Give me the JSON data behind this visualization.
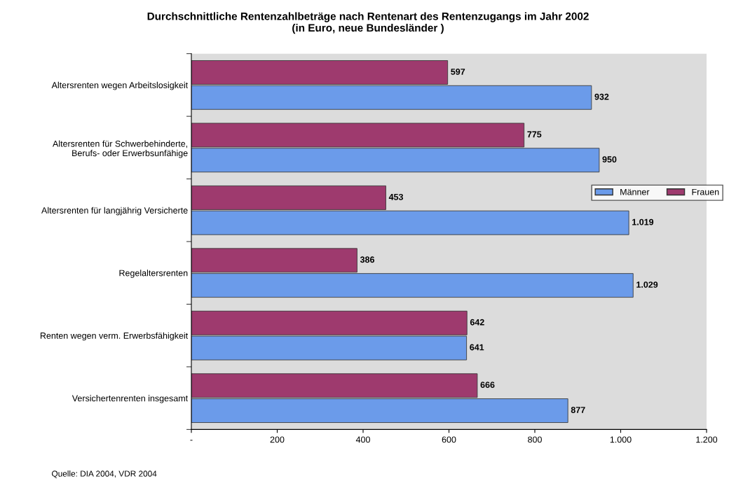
{
  "chart_data": {
    "type": "bar",
    "orientation": "horizontal",
    "title": "Durchschnittliche Rentenzahlbeträge nach Rentenart des Rentenzugangs im Jahr 2002\n(in Euro, neue Bundesländer )",
    "categories": [
      "Altersrenten wegen Arbeitslosigkeit",
      "Altersrenten für Schwerbehinderte,\nBerufs- oder Erwerbsunfähige",
      "Altersrenten für langjährig Versicherte",
      "Regelaltersrenten",
      "Renten wegen verm. Erwerbsfähigkeit",
      "Versichertenrenten insgesamt"
    ],
    "series": [
      {
        "name": "Männer",
        "color": "#6b9bea",
        "values": [
          932,
          950,
          1019,
          1029,
          641,
          877
        ],
        "value_labels": [
          "932",
          "950",
          "1.019",
          "1.029",
          "641",
          "877"
        ]
      },
      {
        "name": "Frauen",
        "color": "#9e3a6e",
        "values": [
          597,
          775,
          453,
          386,
          642,
          666
        ],
        "value_labels": [
          "597",
          "775",
          "453",
          "386",
          "642",
          "666"
        ]
      }
    ],
    "xlim": [
      0,
      1200
    ],
    "xticks": [
      {
        "value": 0,
        "label": "-"
      },
      200,
      400,
      600,
      800,
      {
        "value": 1000,
        "label": "1.000"
      },
      {
        "value": 1200,
        "label": "1.200"
      }
    ],
    "grid": false,
    "legend": "right",
    "annotations": [
      "Quelle: DIA 2004, VDR 2004"
    ]
  }
}
